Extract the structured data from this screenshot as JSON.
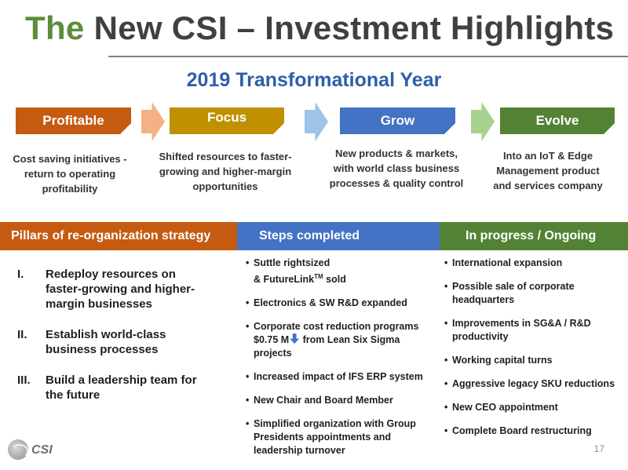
{
  "title": {
    "part1": "The",
    "part2": "New CSI – Investment Highlights"
  },
  "subtitle": "2019 Transformational Year",
  "stages": [
    {
      "label": "Profitable",
      "color": "#c55a11",
      "desc": [
        "Cost saving initiatives -",
        "return to operating",
        "profitability"
      ]
    },
    {
      "label": "Focus",
      "color": "#bf9000",
      "desc": [
        "Shifted resources to faster-",
        "growing and higher-margin",
        "opportunities"
      ]
    },
    {
      "label": "Grow",
      "color": "#4472c4",
      "desc": [
        "New products & markets,",
        "with world class business",
        "processes & quality control"
      ]
    },
    {
      "label": "Evolve",
      "color": "#548235",
      "desc": [
        "Into an IoT & Edge",
        "Management product",
        "and services company"
      ]
    }
  ],
  "arrow_colors": [
    "#f4b183",
    "#9dc3e6",
    "#a9d18e"
  ],
  "pillars": {
    "header": "Pillars of re-organization strategy",
    "color": "#c55a11",
    "items": [
      {
        "num": "I.",
        "text": "Redeploy resources on faster-growing and higher-margin businesses"
      },
      {
        "num": "II.",
        "text": "Establish world-class business processes"
      },
      {
        "num": "III.",
        "text": "Build a leadership team for the future"
      }
    ]
  },
  "steps": {
    "header": "Steps completed",
    "color": "#4472c4",
    "items": [
      {
        "line1": "Suttle rightsized",
        "line2a": "& FutureLink",
        "sup": "TM",
        "line2b": " sold"
      },
      {
        "text": "Electronics & SW R&D expanded"
      },
      {
        "pre": "Corporate cost reduction programs $0.75 M",
        "post": " from Lean Six Sigma projects"
      },
      {
        "text": "Increased impact of IFS ERP system"
      },
      {
        "text": "New Chair and Board Member"
      },
      {
        "text": "Simplified organization with Group Presidents appointments and leadership turnover"
      }
    ]
  },
  "progress": {
    "header": "In progress / Ongoing",
    "color": "#548235",
    "items": [
      "International expansion",
      "Possible sale of corporate headquarters",
      "Improvements in SG&A / R&D productivity",
      "Working capital turns",
      "Aggressive legacy SKU reductions",
      "New CEO appointment",
      "Complete Board restructuring"
    ]
  },
  "bullet": "•",
  "logo_text": "CSI",
  "page_number": "17",
  "icons": {
    "logo": "globe-logo-icon",
    "decrease": "down-arrow-icon"
  }
}
